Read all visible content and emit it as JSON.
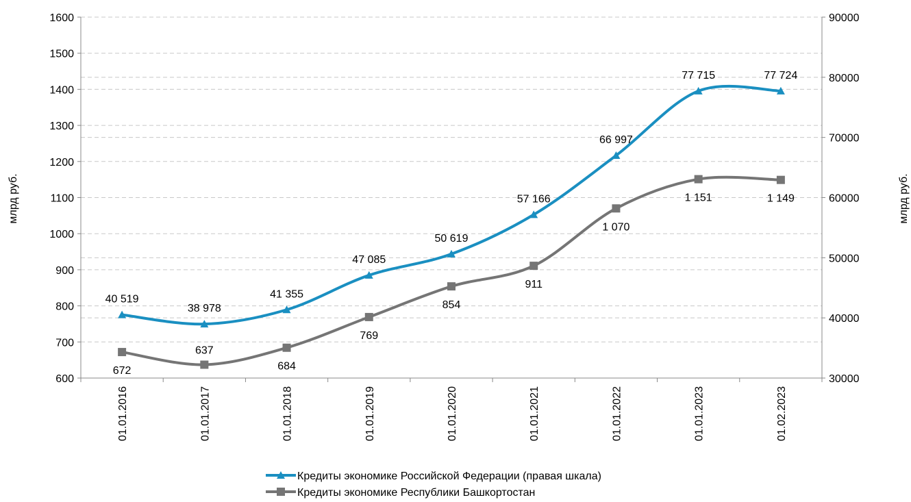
{
  "chart_data": {
    "type": "line",
    "categories": [
      "01.01.2016",
      "01.01.2017",
      "01.01.2018",
      "01.01.2019",
      "01.01.2020",
      "01.01.2021",
      "01.01.2022",
      "01.01.2023",
      "01.02.2023"
    ],
    "series": [
      {
        "name": "Кредиты экономике Российской Федерации (правая шкала)",
        "axis": "right",
        "color": "#1a8fc1",
        "marker": "triangle",
        "values": [
          40519,
          38978,
          41355,
          47085,
          50619,
          57166,
          66997,
          77715,
          77724
        ],
        "labels": [
          "40 519",
          "38 978",
          "41 355",
          "47 085",
          "50 619",
          "57 166",
          "66 997",
          "77 715",
          "77 724"
        ]
      },
      {
        "name": "Кредиты экономике Республики Башкортостан",
        "axis": "left",
        "color": "#757575",
        "marker": "square",
        "values": [
          672,
          637,
          684,
          769,
          854,
          911,
          1070,
          1151,
          1149
        ],
        "labels": [
          "672",
          "637",
          "684",
          "769",
          "854",
          "911",
          "1 070",
          "1 151",
          "1 149"
        ]
      }
    ],
    "ylabel": "млрд руб.",
    "y2label": "млрд руб.",
    "ylim": [
      600,
      1600
    ],
    "y2lim": [
      30000,
      90000
    ],
    "yticks": [
      "600",
      "700",
      "800",
      "900",
      "1000",
      "1100",
      "1200",
      "1300",
      "1400",
      "1500",
      "1600"
    ],
    "y2ticks": [
      "30000",
      "40000",
      "50000",
      "60000",
      "70000",
      "80000",
      "90000"
    ],
    "grid": "dashed horizontal",
    "legend": "bottom-center"
  }
}
